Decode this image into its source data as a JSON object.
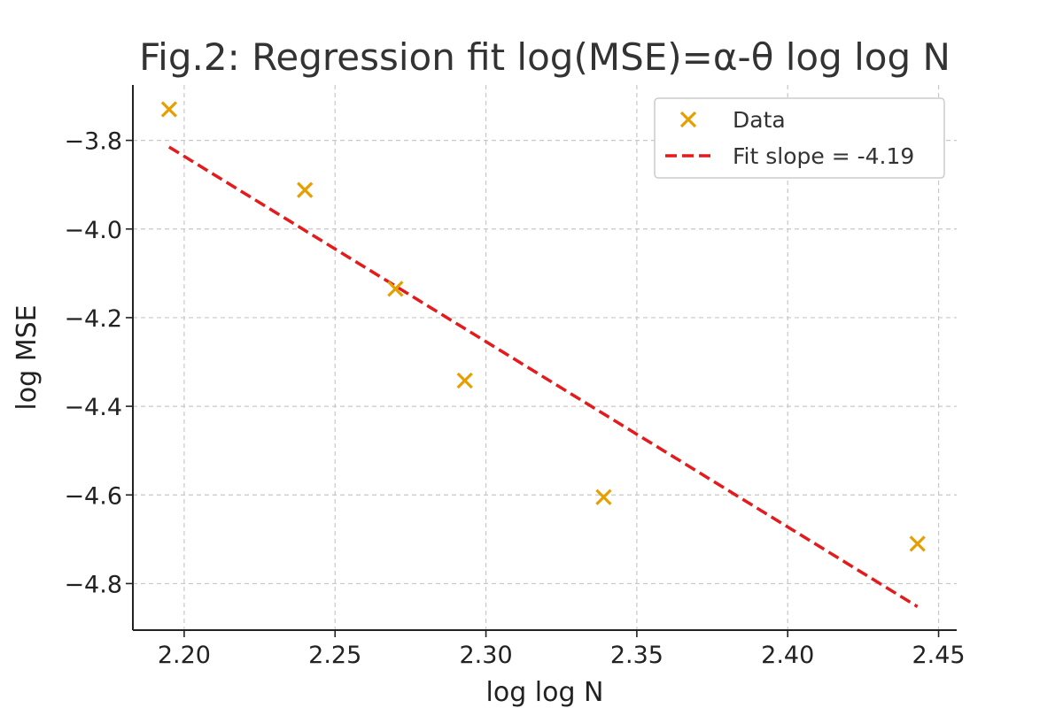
{
  "chart_data": {
    "type": "scatter",
    "title": "Fig.2: Regression fit log(MSE)=α-θ log log N",
    "xlabel": "log log N",
    "ylabel": "log MSE",
    "xlim": [
      2.183,
      2.456
    ],
    "ylim": [
      -4.905,
      -3.675
    ],
    "x_ticks": [
      2.2,
      2.25,
      2.3,
      2.35,
      2.4,
      2.45
    ],
    "x_tick_labels": [
      "2.20",
      "2.25",
      "2.30",
      "2.35",
      "2.40",
      "2.45"
    ],
    "y_ticks": [
      -3.8,
      -4.0,
      -4.2,
      -4.4,
      -4.6,
      -4.8
    ],
    "y_tick_labels": [
      "−3.8",
      "−4.0",
      "−4.2",
      "−4.4",
      "−4.6",
      "−4.8"
    ],
    "grid": true,
    "legend_position": "top-right",
    "series": [
      {
        "name": "Data",
        "kind": "scatter",
        "marker": "x",
        "color": "#E69F00",
        "points": [
          {
            "x": 2.195,
            "y": -3.73
          },
          {
            "x": 2.24,
            "y": -3.912
          },
          {
            "x": 2.27,
            "y": -4.135
          },
          {
            "x": 2.293,
            "y": -4.342
          },
          {
            "x": 2.339,
            "y": -4.605
          },
          {
            "x": 2.443,
            "y": -4.71
          }
        ]
      },
      {
        "name": "Fit slope = -4.19",
        "kind": "line",
        "style": "dashed",
        "color": "#E41A1C",
        "points": [
          {
            "x": 2.195,
            "y": -3.815
          },
          {
            "x": 2.443,
            "y": -4.852
          }
        ]
      }
    ]
  }
}
